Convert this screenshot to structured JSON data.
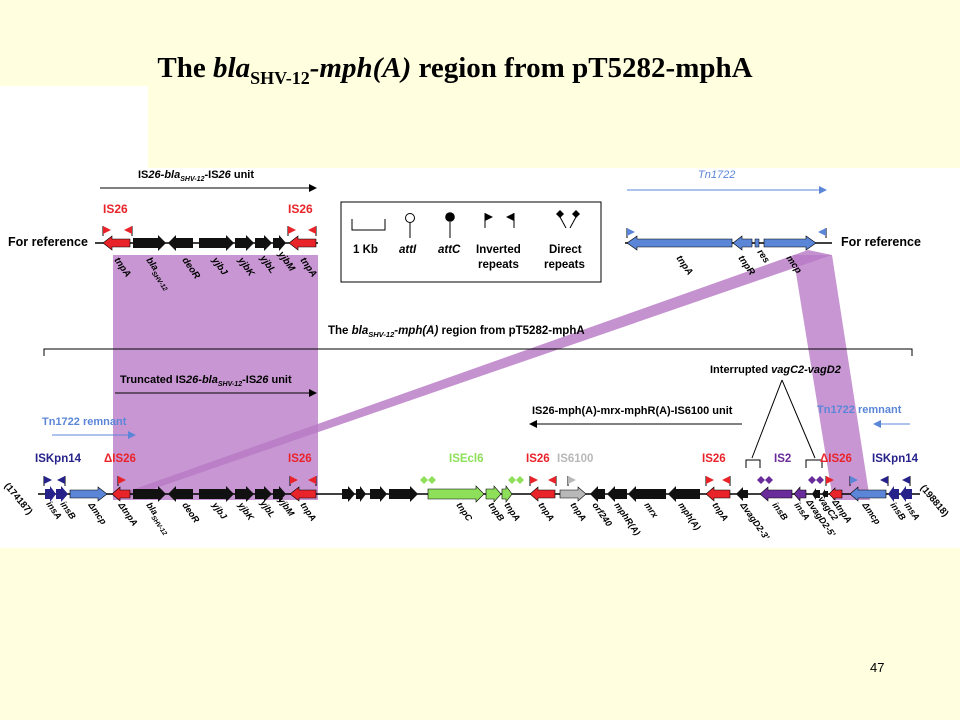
{
  "slide": {
    "title_a": "The ",
    "title_b": "bla",
    "title_sub": "SHV-12",
    "title_c": "-mph(A)",
    "title_d": " region from pT5282-mphA",
    "page_number": "47"
  },
  "colors": {
    "is26": "#e8242a",
    "tn1722": "#5b86d8",
    "iskpn14": "#26228a",
    "isecl6": "#8ee05a",
    "is6100": "#b8b8b8",
    "is2": "#6a2c9a",
    "black_gene": "#111111",
    "shading": "#b87ac6"
  },
  "top": {
    "for_reference_left": "For reference",
    "for_reference_right": "For reference",
    "unit_label_a": "IS",
    "unit_label_b": "26",
    "unit_label_c": "-bla",
    "unit_label_sub": "SHV-12",
    "unit_label_d": "-IS",
    "unit_label_e": "26",
    "unit_label_f": " unit",
    "is26_left": "IS26",
    "is26_right": "IS26",
    "tn1722": "Tn1722",
    "genes_left": [
      "tnpA",
      "bla",
      "deoR",
      "yjbJ",
      "yjbK",
      "yjbL",
      "yjbM",
      "tnpA"
    ],
    "bla_sub": "SHV-12",
    "genes_right": [
      "tnpA",
      "tnpR",
      "res",
      "mcp"
    ]
  },
  "legend": {
    "scale": "1 Kb",
    "attI": "attI",
    "attC": "attC",
    "inverted_1": "Inverted",
    "inverted_2": "repeats",
    "direct_1": "Direct",
    "direct_2": "repeats"
  },
  "region": {
    "label_a": "The ",
    "label_b": "bla",
    "label_sub": "SHV-12",
    "label_c": "-mph(A)",
    "label_d": " region from pT5282-mphA",
    "truncated_a": "Truncated IS",
    "truncated_b": "26",
    "truncated_c": "-bla",
    "truncated_sub": "SHV-12",
    "truncated_d": "-IS",
    "truncated_e": "26",
    "truncated_f": " unit",
    "interrupted_a": "Interrupted ",
    "interrupted_b": "vagC2-vagD2",
    "mph_unit": "IS26-mph(A)-mrx-mphR(A)-IS6100 unit",
    "tn1722_remnant_left": "Tn1722 remnant",
    "tn1722_remnant_right": "Tn1722 remnant"
  },
  "bottom": {
    "coord_left": "(174187)",
    "coord_right": "(198818)",
    "iskpn14_left": "ISKpn14",
    "iskpn14_right": "ISKpn14",
    "delta_is26_left": "ΔIS26",
    "is26_2": "IS26",
    "isecl6": "ISEcl6",
    "is26_3": "IS26",
    "is6100": "IS6100",
    "is26_4": "IS26",
    "is2": "IS2",
    "delta_is26_right": "ΔIS26",
    "genes": [
      "insA",
      "insB",
      "Δmcp",
      "ΔtnpA",
      "bla",
      "deoR",
      "yjbJ",
      "yjbK",
      "yjbL",
      "yjbM",
      "tnpA",
      "tnpC",
      "tnpB",
      "tnpA",
      "tnpA",
      "tnpA",
      "orf240",
      "mphR(A)",
      "mrx",
      "mph(A)",
      "tnpA",
      "ΔvagD2-3'",
      "insB",
      "insA",
      "ΔvagD2-5'",
      "vagC2",
      "ΔtnpA",
      "Δmcp",
      "insB",
      "insA"
    ],
    "bla_sub": "SHV-12"
  }
}
